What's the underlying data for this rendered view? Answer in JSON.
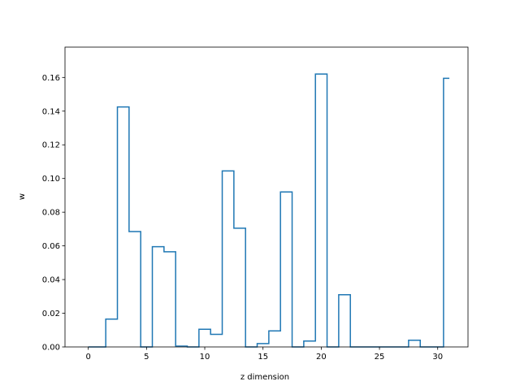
{
  "chart_data": {
    "type": "line",
    "step": "mid",
    "title": "",
    "xlabel": "z dimension",
    "ylabel": "w",
    "xlim": [
      -2.0,
      32.6
    ],
    "ylim": [
      0,
      0.178
    ],
    "grid": false,
    "x_ticks": [
      0,
      5,
      10,
      15,
      20,
      25,
      30
    ],
    "y_ticks": [
      0.0,
      0.02,
      0.04,
      0.06,
      0.08,
      0.1,
      0.12,
      0.14,
      0.16
    ],
    "y_tick_labels": [
      "0.00",
      "0.02",
      "0.04",
      "0.06",
      "0.08",
      "0.10",
      "0.12",
      "0.14",
      "0.16"
    ],
    "line_color": "#1f77b4",
    "series": [
      {
        "x": [
          0,
          1,
          2,
          3,
          4,
          5,
          6,
          7,
          8,
          9,
          10,
          11,
          12,
          13,
          14,
          15,
          16,
          17,
          18,
          19,
          20,
          21,
          22,
          23,
          24,
          25,
          26,
          27,
          28,
          29,
          30,
          31
        ],
        "values": [
          0.0,
          0.0,
          0.0165,
          0.1425,
          0.0685,
          0.0,
          0.0595,
          0.0565,
          0.0005,
          0.0,
          0.0105,
          0.0075,
          0.1045,
          0.0705,
          0.0,
          0.002,
          0.0095,
          0.092,
          0.0,
          0.0035,
          0.162,
          0.0,
          0.031,
          0.0,
          0.0,
          0.0,
          0.0,
          0.0,
          0.004,
          0.0,
          0.0,
          0.1595
        ]
      }
    ]
  }
}
